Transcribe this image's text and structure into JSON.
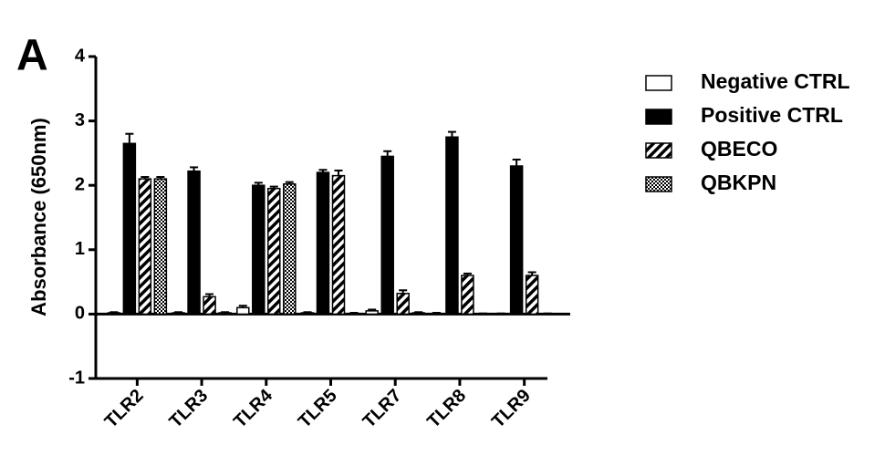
{
  "chart_data": {
    "type": "bar",
    "panel_label": "A",
    "y_label": "Absorbance (650nm)",
    "categories": [
      "TLR2",
      "TLR3",
      "TLR4",
      "TLR5",
      "TLR7",
      "TLR8",
      "TLR9"
    ],
    "series": [
      {
        "name": "Negative CTRL",
        "color": "#ffffff",
        "pattern": "none",
        "values": [
          0.02,
          0.02,
          0.1,
          0.02,
          0.05,
          0.01,
          0.0
        ],
        "errors": [
          0.01,
          0.01,
          0.03,
          0.01,
          0.02,
          0.01,
          0.01
        ]
      },
      {
        "name": "Positive CTRL",
        "color": "#000000",
        "pattern": "solid",
        "values": [
          2.65,
          2.22,
          2.0,
          2.2,
          2.45,
          2.75,
          2.3
        ],
        "errors": [
          0.15,
          0.06,
          0.04,
          0.04,
          0.08,
          0.08,
          0.1
        ]
      },
      {
        "name": "QBECO",
        "color": "#000000",
        "pattern": "hatch",
        "values": [
          2.1,
          0.27,
          1.95,
          2.15,
          0.32,
          0.6,
          0.6
        ],
        "errors": [
          0.03,
          0.04,
          0.03,
          0.08,
          0.05,
          0.03,
          0.05
        ]
      },
      {
        "name": "QBKPN",
        "color": "#000000",
        "pattern": "checker",
        "values": [
          2.1,
          0.02,
          2.02,
          0.01,
          0.02,
          0.0,
          0.0
        ],
        "errors": [
          0.03,
          0.01,
          0.03,
          0.01,
          0.01,
          0.01,
          0.01
        ]
      }
    ],
    "ylim": [
      -1,
      4
    ],
    "yticks": [
      -1,
      0,
      1,
      2,
      3,
      4
    ],
    "legend": "right"
  }
}
